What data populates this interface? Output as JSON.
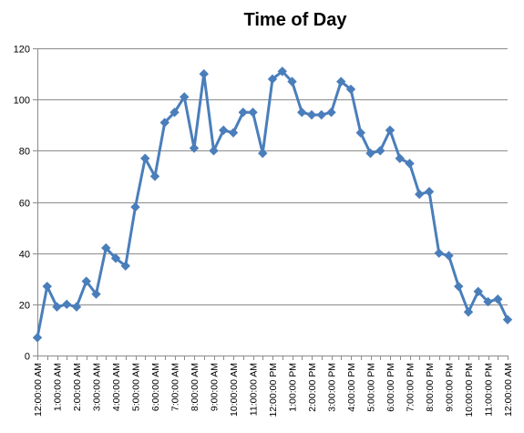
{
  "chart_data": {
    "type": "line",
    "title": "Time of Day",
    "xlabel": "",
    "ylabel": "",
    "ylim": [
      0,
      120
    ],
    "y_ticks": [
      0,
      20,
      40,
      60,
      80,
      100,
      120
    ],
    "grid": true,
    "legend": "none",
    "series_color": "#4a7ebb",
    "x_tick_labels": [
      "12:00:00 AM",
      "1:00:00 AM",
      "2:00:00 AM",
      "3:00:00 AM",
      "4:00:00 AM",
      "5:00:00 AM",
      "6:00:00 AM",
      "7:00:00 AM",
      "8:00:00 AM",
      "9:00:00 AM",
      "10:00:00 AM",
      "11:00:00 AM",
      "12:00:00 PM",
      "1:00:00 PM",
      "2:00:00 PM",
      "3:00:00 PM",
      "4:00:00 PM",
      "5:00:00 PM",
      "6:00:00 PM",
      "7:00:00 PM",
      "8:00:00 PM",
      "9:00:00 PM",
      "10:00:00 PM",
      "11:00:00 PM",
      "12:00:00 AM"
    ],
    "x": [
      "12:00 AM",
      "12:30 AM",
      "1:00 AM",
      "1:30 AM",
      "2:00 AM",
      "2:30 AM",
      "3:00 AM",
      "3:30 AM",
      "4:00 AM",
      "4:30 AM",
      "5:00 AM",
      "5:30 AM",
      "6:00 AM",
      "6:30 AM",
      "7:00 AM",
      "7:30 AM",
      "8:00 AM",
      "8:30 AM",
      "9:00 AM",
      "9:30 AM",
      "10:00 AM",
      "10:30 AM",
      "11:00 AM",
      "11:30 AM",
      "12:00 PM",
      "12:30 PM",
      "1:00 PM",
      "1:30 PM",
      "2:00 PM",
      "2:30 PM",
      "3:00 PM",
      "3:30 PM",
      "4:00 PM",
      "4:30 PM",
      "5:00 PM",
      "5:30 PM",
      "6:00 PM",
      "6:30 PM",
      "7:00 PM",
      "7:30 PM",
      "8:00 PM",
      "8:30 PM",
      "9:00 PM",
      "9:30 PM",
      "10:00 PM",
      "10:30 PM",
      "11:00 PM",
      "11:30 PM",
      "12:00 AM"
    ],
    "series": [
      {
        "values": [
          7,
          27,
          19,
          20,
          19,
          29,
          24,
          42,
          38,
          35,
          58,
          77,
          70,
          91,
          95,
          101,
          81,
          110,
          80,
          88,
          87,
          95,
          95,
          79,
          108,
          111,
          107,
          95,
          94,
          94,
          95,
          107,
          104,
          87,
          79,
          80,
          88,
          77,
          75,
          63,
          64,
          40,
          39,
          27,
          17,
          25,
          21,
          22,
          14
        ]
      }
    ]
  }
}
